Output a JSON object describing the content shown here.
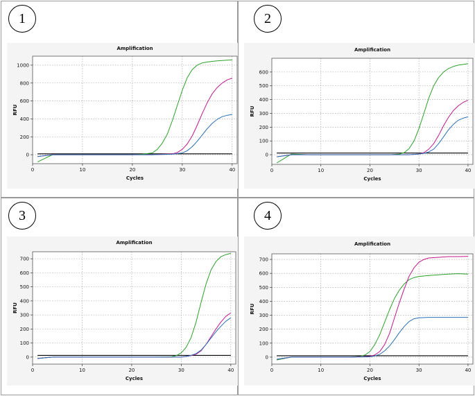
{
  "panels": [
    {
      "label": "1"
    },
    {
      "label": "2"
    },
    {
      "label": "3"
    },
    {
      "label": "4"
    }
  ],
  "colors": {
    "green": "#2ca02c",
    "magenta": "#c0188c",
    "blue": "#2a6fb5",
    "threshold": "#000000",
    "grid": "#9a9a9a"
  },
  "chart_data": [
    {
      "type": "line",
      "title": "Amplification",
      "xlabel": "Cycles",
      "ylabel": "RFU",
      "xlim": [
        0,
        41
      ],
      "ylim": [
        -100,
        1100
      ],
      "xticks": [
        0,
        10,
        20,
        30,
        40
      ],
      "yticks": [
        0,
        200,
        400,
        600,
        800,
        1000
      ],
      "grid": true,
      "threshold": 10,
      "series": [
        {
          "color": "green",
          "x": [
            1,
            4,
            8,
            12,
            16,
            20,
            22,
            24,
            25,
            26,
            27,
            28,
            29,
            30,
            31,
            32,
            33,
            34,
            35,
            36,
            37,
            38,
            39,
            40
          ],
          "y": [
            -80,
            0,
            0,
            0,
            0,
            0,
            5,
            20,
            60,
            130,
            230,
            380,
            550,
            720,
            860,
            950,
            1000,
            1025,
            1035,
            1042,
            1048,
            1052,
            1055,
            1058
          ]
        },
        {
          "color": "magenta",
          "x": [
            1,
            4,
            8,
            12,
            16,
            20,
            24,
            28,
            29,
            30,
            31,
            32,
            33,
            34,
            35,
            36,
            37,
            38,
            39,
            40
          ],
          "y": [
            -20,
            0,
            0,
            0,
            0,
            0,
            0,
            10,
            25,
            60,
            120,
            210,
            330,
            460,
            580,
            680,
            750,
            800,
            835,
            855
          ]
        },
        {
          "color": "blue",
          "x": [
            1,
            4,
            8,
            12,
            16,
            20,
            24,
            28,
            30,
            31,
            32,
            33,
            34,
            35,
            36,
            37,
            38,
            39,
            40
          ],
          "y": [
            -20,
            0,
            0,
            0,
            0,
            0,
            0,
            5,
            20,
            45,
            90,
            150,
            220,
            290,
            350,
            395,
            425,
            440,
            450
          ]
        }
      ]
    },
    {
      "type": "line",
      "title": "Amplification",
      "xlabel": "Cycles",
      "ylabel": "RFU",
      "xlim": [
        0,
        41
      ],
      "ylim": [
        -70,
        700
      ],
      "xticks": [
        0,
        10,
        20,
        30,
        40
      ],
      "yticks": [
        0,
        100,
        200,
        300,
        400,
        500,
        600
      ],
      "grid": true,
      "threshold": 12,
      "series": [
        {
          "color": "green",
          "x": [
            1,
            4,
            8,
            12,
            16,
            20,
            24,
            26,
            27,
            28,
            29,
            30,
            31,
            32,
            33,
            34,
            35,
            36,
            37,
            38,
            39,
            40
          ],
          "y": [
            -60,
            5,
            0,
            0,
            0,
            0,
            0,
            5,
            15,
            45,
            100,
            190,
            300,
            410,
            500,
            560,
            600,
            625,
            640,
            650,
            655,
            660
          ]
        },
        {
          "color": "magenta",
          "x": [
            1,
            4,
            8,
            12,
            16,
            20,
            24,
            28,
            30,
            31,
            32,
            33,
            34,
            35,
            36,
            37,
            38,
            39,
            40
          ],
          "y": [
            -15,
            0,
            0,
            0,
            0,
            0,
            0,
            0,
            5,
            15,
            40,
            80,
            140,
            210,
            270,
            320,
            355,
            380,
            395
          ]
        },
        {
          "color": "blue",
          "x": [
            1,
            4,
            8,
            12,
            16,
            20,
            24,
            28,
            30,
            31,
            32,
            33,
            34,
            35,
            36,
            37,
            38,
            39,
            40
          ],
          "y": [
            -15,
            0,
            0,
            0,
            0,
            0,
            0,
            0,
            5,
            10,
            20,
            40,
            80,
            130,
            180,
            220,
            250,
            265,
            275
          ]
        }
      ]
    },
    {
      "type": "line",
      "title": "Amplification",
      "xlabel": "Cycles",
      "ylabel": "RFU",
      "xlim": [
        0,
        41
      ],
      "ylim": [
        -50,
        750
      ],
      "xticks": [
        0,
        10,
        20,
        30,
        40
      ],
      "yticks": [
        0,
        100,
        200,
        300,
        400,
        500,
        600,
        700
      ],
      "grid": true,
      "threshold": 12,
      "series": [
        {
          "color": "green",
          "x": [
            1,
            4,
            8,
            12,
            16,
            20,
            24,
            28,
            29,
            30,
            31,
            32,
            33,
            34,
            35,
            36,
            37,
            38,
            39,
            40
          ],
          "y": [
            -10,
            0,
            0,
            0,
            0,
            0,
            0,
            2,
            10,
            30,
            70,
            140,
            250,
            390,
            520,
            620,
            680,
            715,
            730,
            738
          ]
        },
        {
          "color": "magenta",
          "x": [
            1,
            4,
            8,
            12,
            16,
            20,
            24,
            28,
            30,
            31,
            32,
            33,
            34,
            35,
            36,
            37,
            38,
            39,
            40
          ],
          "y": [
            -10,
            0,
            0,
            0,
            0,
            0,
            0,
            0,
            0,
            5,
            10,
            20,
            45,
            90,
            145,
            200,
            250,
            290,
            315
          ]
        },
        {
          "color": "blue",
          "x": [
            1,
            4,
            8,
            12,
            16,
            20,
            24,
            28,
            30,
            31,
            32,
            33,
            34,
            35,
            36,
            37,
            38,
            39,
            40
          ],
          "y": [
            -10,
            0,
            0,
            0,
            0,
            0,
            0,
            0,
            0,
            5,
            12,
            25,
            50,
            90,
            135,
            180,
            220,
            255,
            280
          ]
        }
      ]
    },
    {
      "type": "line",
      "title": "Amplification",
      "xlabel": "Cycles",
      "ylabel": "RFU",
      "xlim": [
        0,
        41
      ],
      "ylim": [
        -50,
        740
      ],
      "xticks": [
        0,
        10,
        20,
        30,
        40
      ],
      "yticks": [
        0,
        100,
        200,
        300,
        400,
        500,
        600,
        700
      ],
      "grid": true,
      "threshold": 10,
      "series": [
        {
          "color": "green",
          "x": [
            1,
            4,
            8,
            12,
            16,
            18,
            19,
            20,
            21,
            22,
            23,
            24,
            25,
            26,
            27,
            28,
            29,
            30,
            32,
            34,
            36,
            38,
            40
          ],
          "y": [
            -20,
            0,
            0,
            0,
            0,
            5,
            15,
            40,
            90,
            160,
            250,
            340,
            420,
            480,
            525,
            555,
            570,
            578,
            585,
            590,
            595,
            598,
            595
          ]
        },
        {
          "color": "magenta",
          "x": [
            1,
            4,
            8,
            12,
            16,
            20,
            21,
            22,
            23,
            24,
            25,
            26,
            27,
            28,
            29,
            30,
            31,
            32,
            34,
            36,
            38,
            40
          ],
          "y": [
            -15,
            0,
            0,
            0,
            0,
            5,
            15,
            40,
            90,
            170,
            280,
            390,
            490,
            580,
            640,
            680,
            700,
            710,
            715,
            720,
            720,
            722
          ]
        },
        {
          "color": "blue",
          "x": [
            1,
            4,
            8,
            12,
            16,
            20,
            21,
            22,
            23,
            24,
            25,
            26,
            27,
            28,
            29,
            30,
            32,
            34,
            36,
            38,
            40
          ],
          "y": [
            -15,
            0,
            0,
            0,
            0,
            2,
            8,
            20,
            45,
            80,
            125,
            175,
            220,
            255,
            275,
            282,
            285,
            285,
            285,
            285,
            285
          ]
        }
      ]
    }
  ]
}
